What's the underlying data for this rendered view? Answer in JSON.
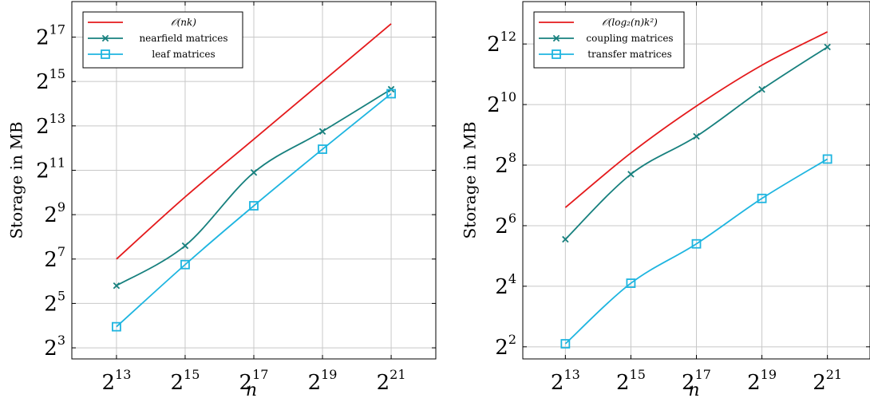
{
  "chart_data": [
    {
      "type": "line",
      "xlabel": "n",
      "ylabel": "Storage in MB",
      "x_scale": "log2",
      "y_scale": "log2",
      "x": [
        13,
        15,
        17,
        19,
        21
      ],
      "xlim": [
        11.7,
        22.3
      ],
      "ylim": [
        2.5,
        18.6
      ],
      "x_ticks": [
        13,
        15,
        17,
        19,
        21
      ],
      "y_ticks": [
        3,
        5,
        7,
        9,
        11,
        13,
        15,
        17
      ],
      "grid": true,
      "legend_position": "top-left",
      "series": [
        {
          "name": "𝒪(nk)",
          "color": "#e41a1c",
          "marker": "none",
          "y": [
            7.0,
            9.8,
            12.4,
            15.0,
            17.6
          ]
        },
        {
          "name": "nearfield matrices",
          "color": "#17807e",
          "marker": "x",
          "y": [
            5.8,
            7.6,
            10.9,
            12.75,
            14.65
          ]
        },
        {
          "name": "leaf matrices",
          "color": "#1eb5e0",
          "marker": "square",
          "y": [
            3.95,
            6.75,
            9.4,
            11.95,
            14.45
          ]
        }
      ]
    },
    {
      "type": "line",
      "xlabel": "n",
      "ylabel": "Storage in MB",
      "x_scale": "log2",
      "y_scale": "log2",
      "x": [
        13,
        15,
        17,
        19,
        21
      ],
      "xlim": [
        11.7,
        22.3
      ],
      "ylim": [
        1.6,
        13.4
      ],
      "x_ticks": [
        13,
        15,
        17,
        19,
        21
      ],
      "y_ticks": [
        2,
        4,
        6,
        8,
        10,
        12
      ],
      "grid": true,
      "legend_position": "top-left",
      "series": [
        {
          "name": "𝒪(log₂(n)k²)",
          "color": "#e41a1c",
          "marker": "none",
          "y": [
            6.6,
            8.4,
            9.95,
            11.3,
            12.4
          ]
        },
        {
          "name": "coupling matrices",
          "color": "#17807e",
          "marker": "x",
          "y": [
            5.55,
            7.7,
            8.95,
            10.5,
            11.9
          ]
        },
        {
          "name": "transfer matrices",
          "color": "#1eb5e0",
          "marker": "square",
          "y": [
            2.1,
            4.1,
            5.4,
            6.9,
            8.2
          ]
        }
      ]
    }
  ]
}
